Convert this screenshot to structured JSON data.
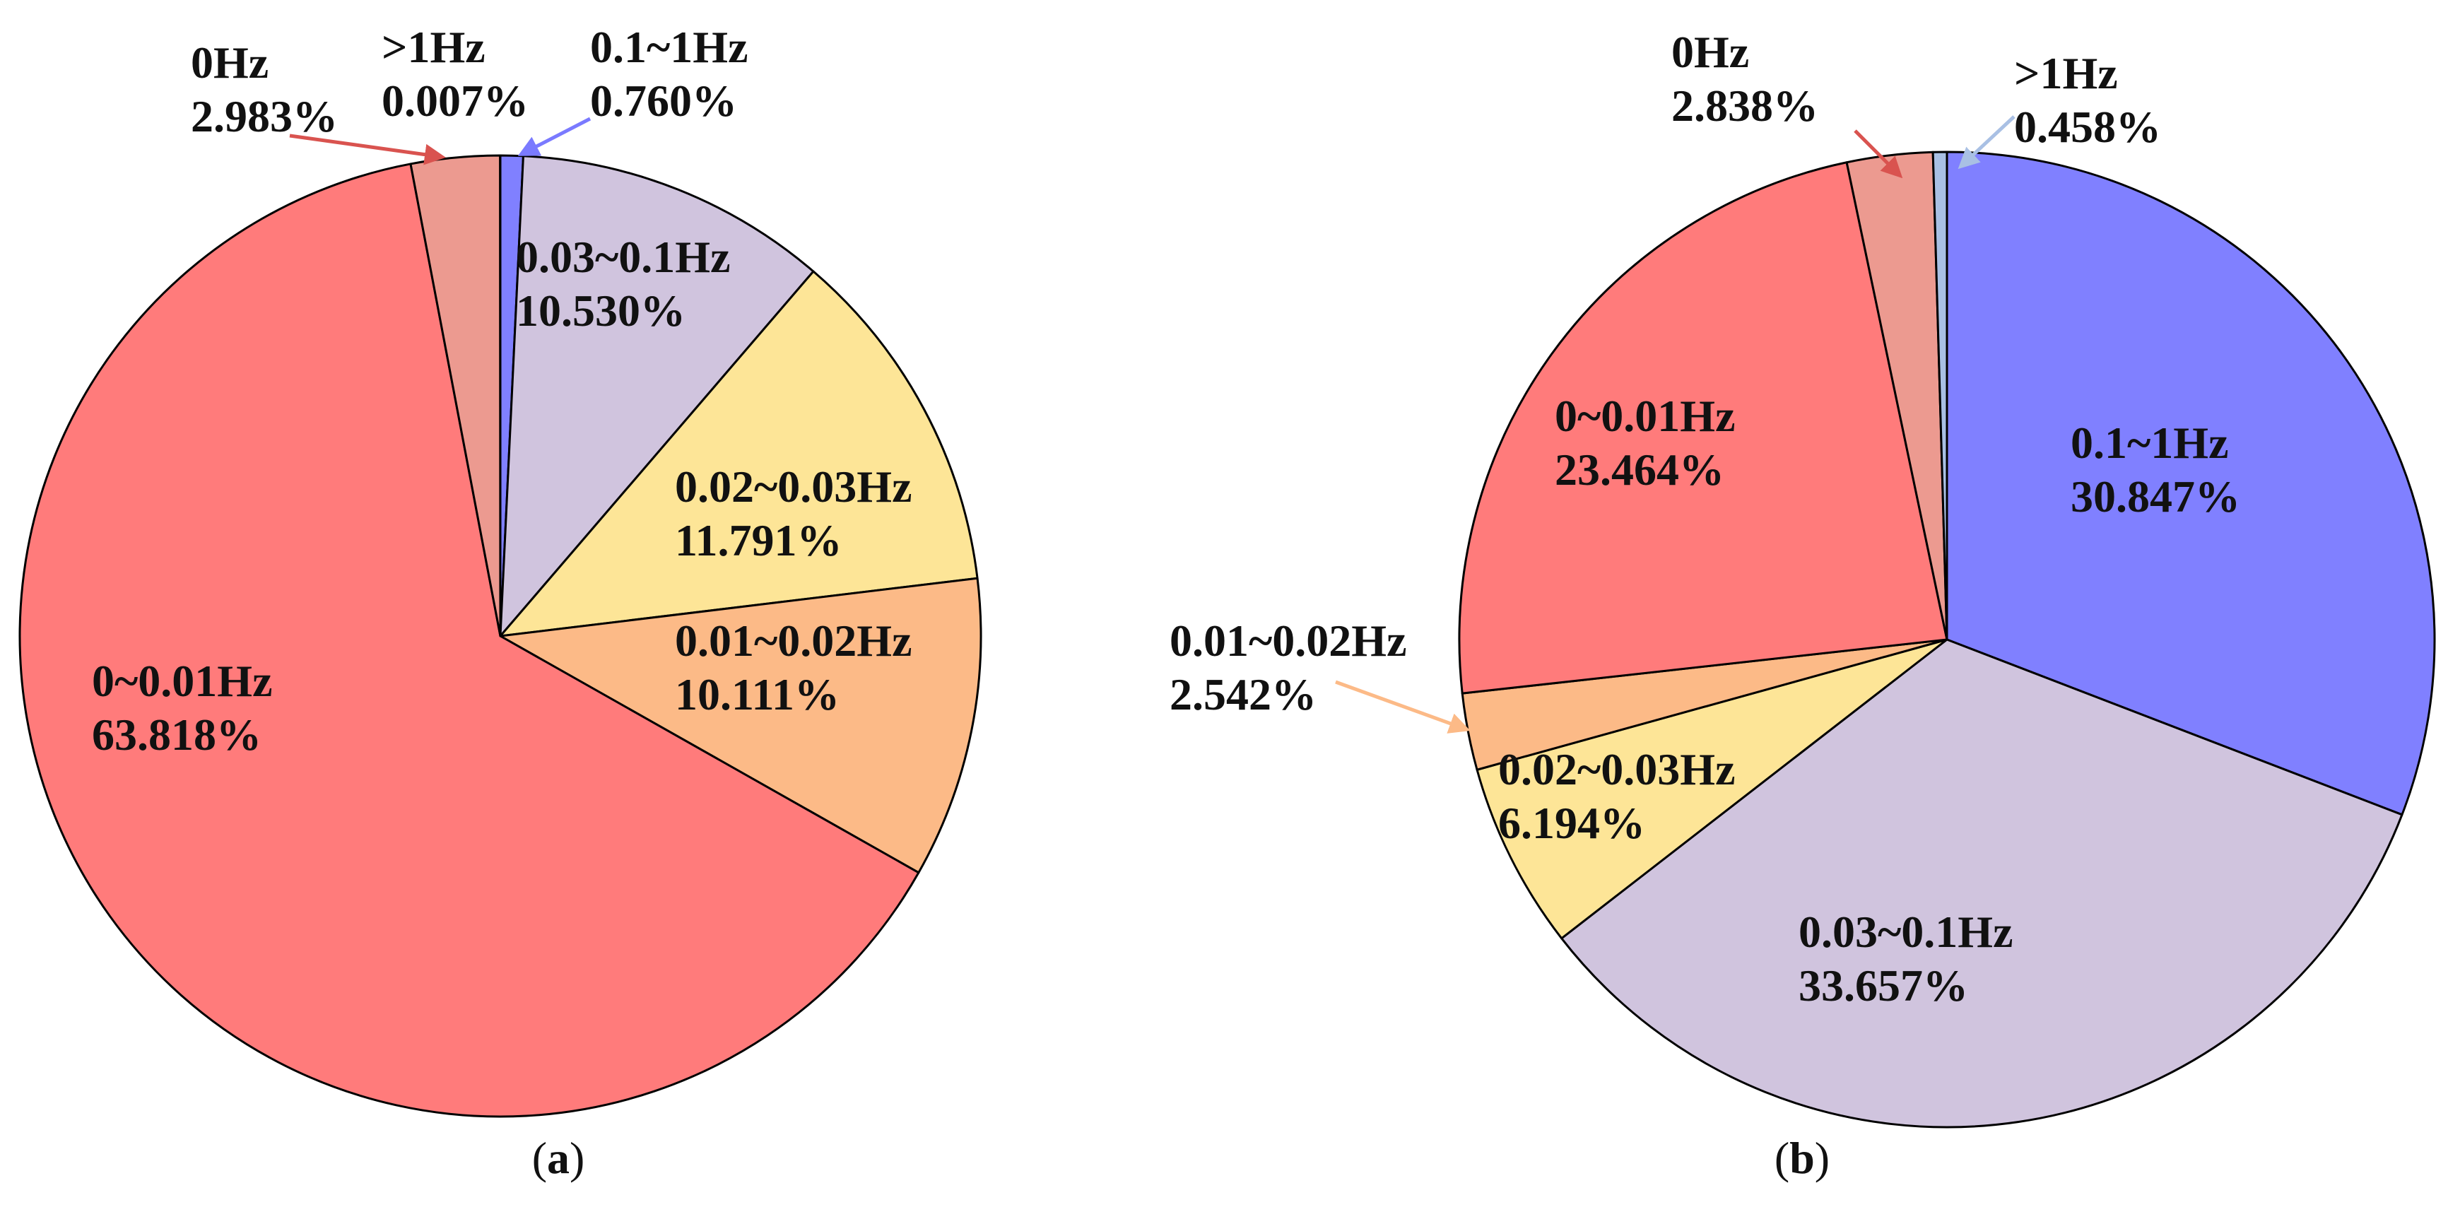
{
  "chart_data": [
    {
      "type": "pie",
      "panel": "a",
      "caption": {
        "open": "(",
        "letter": "a",
        "close": ")"
      },
      "start_angle_deg": 0,
      "direction": "clockwise",
      "slices": [
        {
          "key": "s_0_1",
          "name": "0.1~1Hz",
          "value": 0.76,
          "pct": "0.760%",
          "color": "#8080ff"
        },
        {
          "key": "s_003_01",
          "name": "0.03~0.1Hz",
          "value": 10.53,
          "pct": "10.530%",
          "color": "#d0c4de"
        },
        {
          "key": "s_002_003",
          "name": "0.02~0.03Hz",
          "value": 11.791,
          "pct": "11.791%",
          "color": "#fde597"
        },
        {
          "key": "s_001_002",
          "name": "0.01~0.02Hz",
          "value": 10.111,
          "pct": "10.111%",
          "color": "#fcba87"
        },
        {
          "key": "s_0_001",
          "name": "0~0.01Hz",
          "value": 63.818,
          "pct": "63.818%",
          "color": "#ff7b7b"
        },
        {
          "key": "s_0hz",
          "name": "0Hz",
          "value": 2.983,
          "pct": "2.983%",
          "color": "#ec9a90"
        },
        {
          "key": "s_gt1",
          "name": ">1Hz",
          "value": 0.007,
          "pct": "0.007%",
          "color": "#a9c0e4"
        }
      ],
      "arrows": [
        {
          "slice": "s_0hz",
          "color": "#d9534f"
        },
        {
          "slice": "s_0_1",
          "color": "#7a7aff"
        }
      ]
    },
    {
      "type": "pie",
      "panel": "b",
      "caption": {
        "open": "(",
        "letter": "b",
        "close": ")"
      },
      "start_angle_deg": 0,
      "direction": "clockwise",
      "slices": [
        {
          "key": "s_0_1",
          "name": "0.1~1Hz",
          "value": 30.847,
          "pct": "30.847%",
          "color": "#8080ff"
        },
        {
          "key": "s_003_01",
          "name": "0.03~0.1Hz",
          "value": 33.657,
          "pct": "33.657%",
          "color": "#d0c4de"
        },
        {
          "key": "s_002_003",
          "name": "0.02~0.03Hz",
          "value": 6.194,
          "pct": "6.194%",
          "color": "#fde597"
        },
        {
          "key": "s_001_002",
          "name": "0.01~0.02Hz",
          "value": 2.542,
          "pct": "2.542%",
          "color": "#fcba87"
        },
        {
          "key": "s_0_001",
          "name": "0~0.01Hz",
          "value": 23.464,
          "pct": "23.464%",
          "color": "#ff7b7b"
        },
        {
          "key": "s_0hz",
          "name": "0Hz",
          "value": 2.838,
          "pct": "2.838%",
          "color": "#ec9a90"
        },
        {
          "key": "s_gt1",
          "name": ">1Hz",
          "value": 0.458,
          "pct": "0.458%",
          "color": "#a9c0e4"
        }
      ],
      "arrows": [
        {
          "slice": "s_0hz",
          "color": "#d9534f"
        },
        {
          "slice": "s_gt1",
          "color": "#a9c0e4"
        },
        {
          "slice": "s_001_002",
          "color": "#fcba87"
        }
      ]
    }
  ]
}
